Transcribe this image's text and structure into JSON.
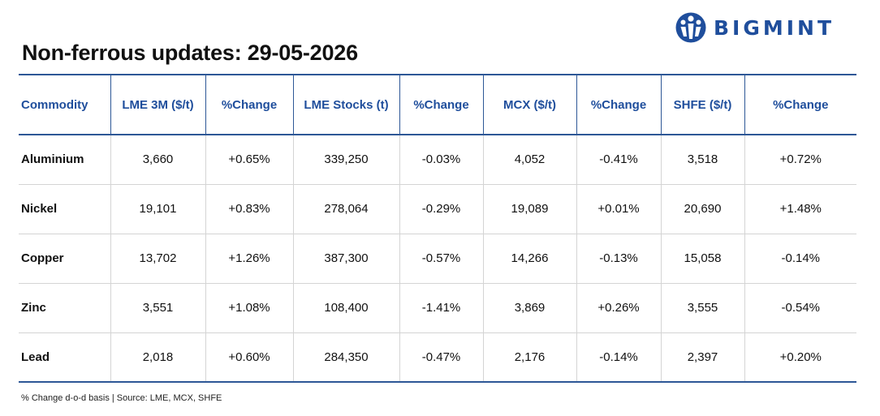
{
  "brand": {
    "name": "BIGMINT",
    "color": "#1f4e9c",
    "icon": "bigmint-logo-icon"
  },
  "title": "Non-ferrous updates: 29-05-2026",
  "table": {
    "headers": [
      "Commodity",
      "LME 3M ($/t)",
      "%Change",
      "LME Stocks (t)",
      "%Change",
      "MCX ($/t)",
      "%Change",
      "SHFE ($/t)",
      "%Change"
    ],
    "rows": [
      [
        "Aluminium",
        "3,660",
        "+0.65%",
        "339,250",
        "-0.03%",
        "4,052",
        "-0.41%",
        "3,518",
        "+0.72%"
      ],
      [
        "Nickel",
        "19,101",
        "+0.83%",
        "278,064",
        "-0.29%",
        "19,089",
        "+0.01%",
        "20,690",
        "+1.48%"
      ],
      [
        "Copper",
        "13,702",
        "+1.26%",
        "387,300",
        "-0.57%",
        "14,266",
        "-0.13%",
        "15,058",
        "-0.14%"
      ],
      [
        "Zinc",
        "3,551",
        "+1.08%",
        "108,400",
        "-1.41%",
        "3,869",
        "+0.26%",
        "3,555",
        "-0.54%"
      ],
      [
        "Lead",
        "2,018",
        "+0.60%",
        "284,350",
        "-0.47%",
        "2,176",
        "-0.14%",
        "2,397",
        "+0.20%"
      ]
    ]
  },
  "colors": {
    "header_text": "#1f4e9c",
    "rule": "#2d5796",
    "positive": "#2a9d3a",
    "negative": "#d9232a"
  },
  "footer": "% Change d-o-d basis | Source: LME, MCX, SHFE"
}
